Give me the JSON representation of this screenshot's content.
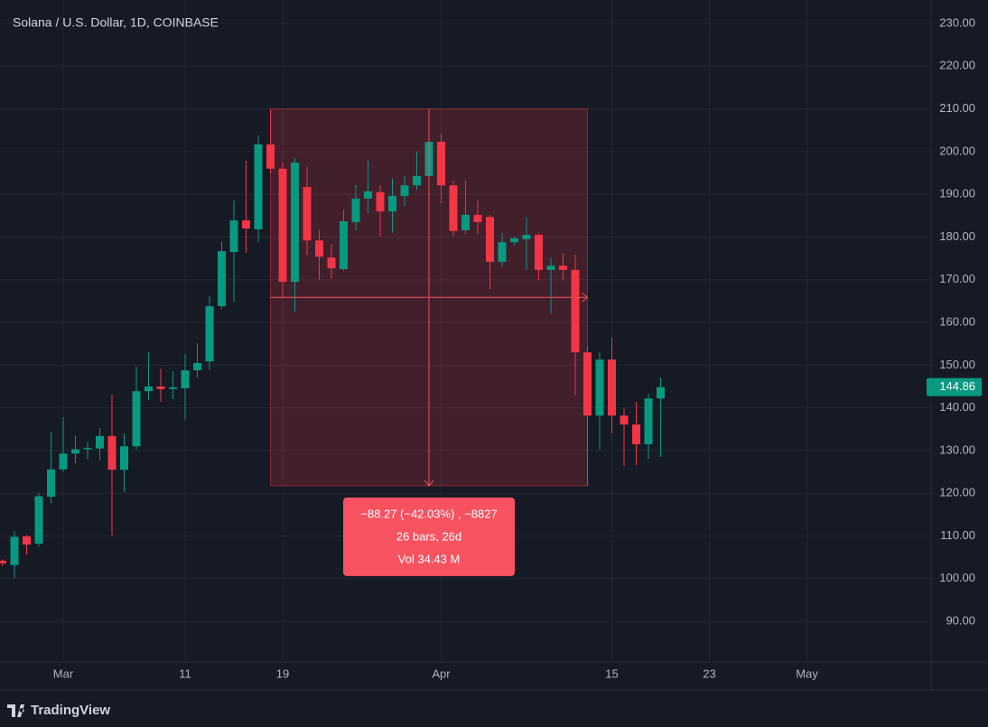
{
  "chart_data": {
    "type": "candlestick",
    "title": "Solana / U.S. Dollar, 1D, COINBASE",
    "categories": [
      null,
      null,
      null,
      null,
      null,
      "Mar",
      null,
      null,
      null,
      null,
      null,
      null,
      null,
      null,
      null,
      "11",
      null,
      null,
      null,
      null,
      null,
      null,
      null,
      "19",
      null,
      null,
      null,
      null,
      null,
      null,
      null,
      null,
      null,
      null,
      null,
      null,
      "Apr",
      null,
      null,
      null,
      null,
      null,
      null,
      null,
      null,
      null,
      null,
      null,
      null,
      null,
      "15",
      null,
      null,
      null,
      null,
      null,
      null,
      null,
      "23",
      null,
      null,
      null,
      null,
      null,
      null,
      null,
      "May",
      null,
      null,
      null,
      null,
      null,
      null,
      null,
      null,
      null,
      null
    ],
    "open": [
      104.2,
      103.2,
      109.9,
      108.2,
      119.2,
      125.6,
      129.3,
      130.3,
      130.5,
      133.4,
      125.5,
      131.0,
      143.9,
      145.0,
      144.4,
      144.6,
      148.8,
      150.9,
      163.8,
      176.5,
      183.9,
      181.8,
      201.7,
      196.0,
      169.5,
      191.7,
      179.2,
      175.2,
      172.5,
      183.5,
      189.0,
      190.5,
      186.0,
      189.6,
      192.1,
      194.3,
      202.3,
      192.1,
      181.6,
      185.2,
      184.7,
      174.2,
      178.8,
      179.5,
      180.5,
      172.3,
      173.3,
      172.3,
      153.0,
      138.2,
      151.3,
      138.2,
      136.1,
      131.5,
      142.2,
      null,
      null,
      null,
      null,
      null,
      null,
      null,
      null,
      null,
      null,
      null,
      null,
      null,
      null,
      null,
      null,
      null,
      null,
      null,
      null,
      null,
      null
    ],
    "high": [
      104.5,
      111.2,
      110.3,
      120.0,
      134.4,
      137.8,
      133.5,
      132.0,
      135.3,
      143.1,
      134.0,
      149.6,
      153.0,
      149.2,
      148.5,
      152.6,
      155.1,
      166.1,
      178.9,
      188.6,
      197.9,
      203.8,
      209.9,
      197.5,
      198.5,
      196.4,
      181.6,
      178.3,
      186.4,
      192.2,
      197.9,
      192.1,
      193.7,
      194.3,
      200.0,
      203.4,
      204.2,
      193.2,
      193.2,
      188.6,
      185.2,
      180.9,
      180.1,
      184.7,
      180.9,
      175.2,
      176.3,
      175.9,
      154.5,
      153.0,
      156.4,
      139.9,
      141.4,
      143.3,
      147.1,
      null,
      null,
      null,
      null,
      null,
      null,
      null,
      null,
      null,
      null,
      null,
      null,
      null,
      null,
      null,
      null,
      null,
      null,
      null,
      null,
      null,
      null
    ],
    "low": [
      103.0,
      100.2,
      105.7,
      107.5,
      117.6,
      125.1,
      127.0,
      128.0,
      127.7,
      110.1,
      120.3,
      130.2,
      141.8,
      141.4,
      142.0,
      137.2,
      147.1,
      148.8,
      163.1,
      164.7,
      176.3,
      178.8,
      194.9,
      165.7,
      162.5,
      175.7,
      170.0,
      170.3,
      172.1,
      181.6,
      185.6,
      180.1,
      181.0,
      187.3,
      191.0,
      193.2,
      187.9,
      180.1,
      180.7,
      180.7,
      167.8,
      173.1,
      178.0,
      172.3,
      170.0,
      162.1,
      170.0,
      142.9,
      121.8,
      130.2,
      134.0,
      126.4,
      126.6,
      128.0,
      128.5,
      null,
      null,
      null,
      null,
      null,
      null,
      null,
      null,
      null,
      null,
      null,
      null,
      null,
      null,
      null,
      null,
      null,
      null,
      null,
      null,
      null,
      null
    ],
    "close": [
      103.6,
      109.8,
      108.0,
      119.3,
      125.6,
      129.3,
      130.3,
      130.6,
      133.4,
      125.5,
      131.0,
      143.9,
      145.0,
      144.4,
      144.8,
      148.8,
      150.5,
      163.8,
      176.7,
      183.9,
      182.0,
      201.7,
      196.0,
      169.5,
      197.4,
      179.2,
      175.4,
      172.7,
      183.7,
      189.0,
      190.7,
      186.0,
      189.6,
      192.1,
      194.3,
      202.3,
      192.1,
      181.4,
      185.2,
      183.5,
      174.2,
      178.8,
      179.7,
      180.5,
      172.3,
      173.3,
      172.3,
      153.0,
      138.2,
      151.3,
      138.2,
      136.1,
      131.5,
      142.2,
      144.86,
      null,
      null,
      null,
      null,
      null,
      null,
      null,
      null,
      null,
      null,
      null,
      null,
      null,
      null,
      null,
      null,
      null,
      null,
      null,
      null,
      null,
      null
    ],
    "up_color": "#089981",
    "down_color": "#f23645",
    "ylim": [
      80.5,
      235.5
    ],
    "yticks": [
      {
        "value": 90,
        "label": "90.00"
      },
      {
        "value": 100,
        "label": "100.00"
      },
      {
        "value": 110,
        "label": "110.00"
      },
      {
        "value": 120,
        "label": "120.00"
      },
      {
        "value": 130,
        "label": "130.00"
      },
      {
        "value": 140,
        "label": "140.00"
      },
      {
        "value": 150,
        "label": "150.00"
      },
      {
        "value": 160,
        "label": "160.00"
      },
      {
        "value": 170,
        "label": "170.00"
      },
      {
        "value": 180,
        "label": "180.00"
      },
      {
        "value": 190,
        "label": "190.00"
      },
      {
        "value": 200,
        "label": "200.00"
      },
      {
        "value": 210,
        "label": "210.00"
      },
      {
        "value": 220,
        "label": "220.00"
      },
      {
        "value": 230,
        "label": "230.00"
      }
    ],
    "grid": true,
    "measure": {
      "high": 210.0,
      "low": 121.75,
      "change": "−88.27 (−42.03%) , −8827",
      "bars": "26 bars, 26d",
      "volume": "Vol 34.43 M"
    }
  },
  "branding": "TradingView"
}
